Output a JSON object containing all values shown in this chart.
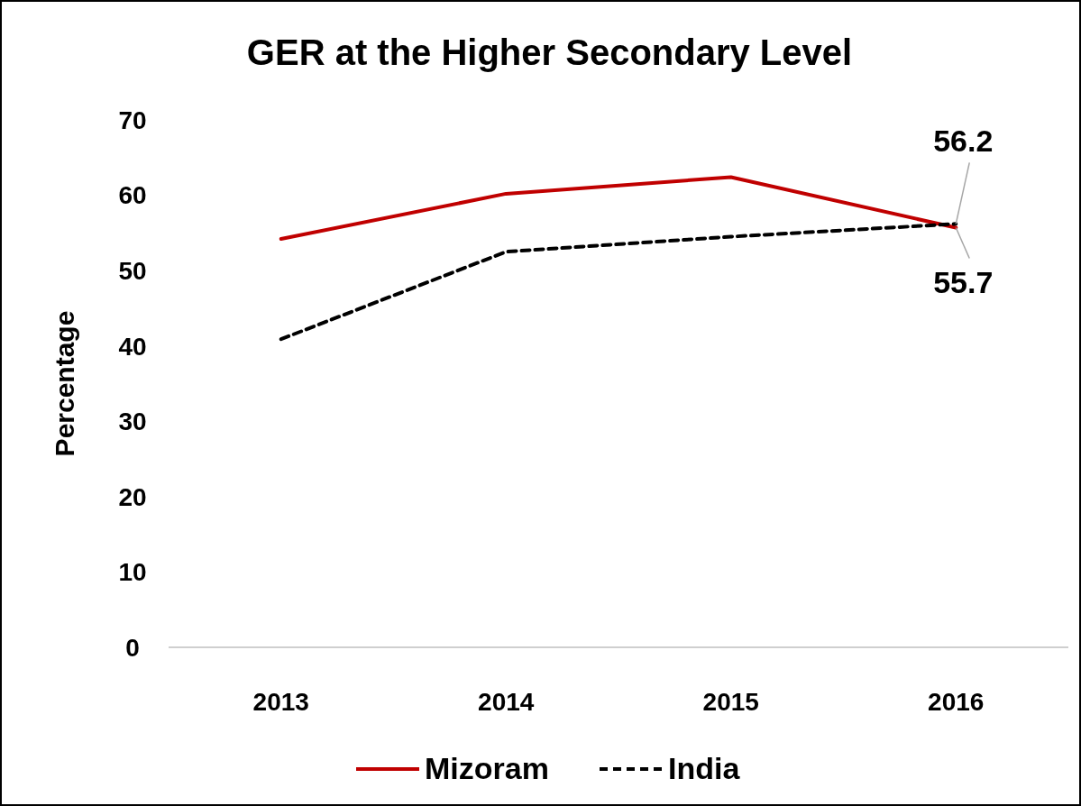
{
  "chart_data": {
    "type": "line",
    "title": "GER at the Higher Secondary Level",
    "ylabel": "Percentage",
    "categories": [
      "2013",
      "2014",
      "2015",
      "2016"
    ],
    "series": [
      {
        "name": "Mizoram",
        "color": "#c00000",
        "line_style": "solid",
        "values": [
          54.2,
          60.2,
          62.4,
          55.7
        ],
        "value_labels": [
          null,
          null,
          null,
          "55.7"
        ]
      },
      {
        "name": "India",
        "color": "#000000",
        "line_style": "dashed",
        "values": [
          40.9,
          52.5,
          54.5,
          56.2
        ],
        "value_labels": [
          null,
          null,
          null,
          "56.2"
        ]
      }
    ],
    "ylim": [
      0,
      70
    ],
    "yticks": [
      0,
      10,
      20,
      30,
      40,
      50,
      60,
      70
    ],
    "grid": false,
    "legend": "bottom",
    "marker": "none"
  }
}
